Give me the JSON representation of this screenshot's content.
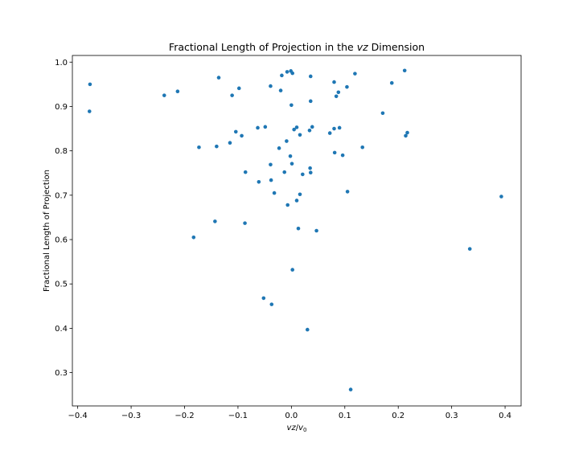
{
  "chart_data": {
    "type": "scatter",
    "title_prefix": "Fractional Length of Projection in the ",
    "title_italic": "vz",
    "title_suffix": " Dimension",
    "xlabel_italic_1": "vz",
    "xlabel_sep": "/",
    "xlabel_italic_2": "v",
    "xlabel_sub": "0",
    "ylabel": "Fractional Length of Projection",
    "xlim": [
      -0.41,
      0.43
    ],
    "ylim": [
      0.225,
      1.015
    ],
    "xticks": [
      -0.4,
      -0.3,
      -0.2,
      -0.1,
      0.0,
      0.1,
      0.2,
      0.3,
      0.4
    ],
    "xtick_labels": [
      "−0.4",
      "−0.3",
      "−0.2",
      "−0.1",
      "0.0",
      "0.1",
      "0.2",
      "0.3",
      "0.4"
    ],
    "yticks": [
      0.3,
      0.4,
      0.5,
      0.6,
      0.7,
      0.8,
      0.9,
      1.0
    ],
    "ytick_labels": [
      "0.3",
      "0.4",
      "0.5",
      "0.6",
      "0.7",
      "0.8",
      "0.9",
      "1.0"
    ],
    "grid": false,
    "marker_color": "#1f77b4",
    "points": [
      [
        -0.377,
        0.95
      ],
      [
        -0.378,
        0.889
      ],
      [
        -0.238,
        0.925
      ],
      [
        -0.213,
        0.934
      ],
      [
        -0.136,
        0.965
      ],
      [
        -0.111,
        0.925
      ],
      [
        -0.098,
        0.941
      ],
      [
        -0.14,
        0.81
      ],
      [
        -0.173,
        0.808
      ],
      [
        -0.115,
        0.818
      ],
      [
        -0.104,
        0.843
      ],
      [
        -0.093,
        0.834
      ],
      [
        -0.063,
        0.852
      ],
      [
        -0.049,
        0.854
      ],
      [
        -0.039,
        0.946
      ],
      [
        -0.02,
        0.936
      ],
      [
        -0.018,
        0.97
      ],
      [
        -0.008,
        0.978
      ],
      [
        -0.001,
        0.98
      ],
      [
        0.002,
        0.975
      ],
      [
        0.036,
        0.968
      ],
      [
        0.0,
        0.903
      ],
      [
        0.036,
        0.912
      ],
      [
        0.08,
        0.955
      ],
      [
        0.084,
        0.923
      ],
      [
        0.088,
        0.932
      ],
      [
        0.104,
        0.944
      ],
      [
        0.119,
        0.974
      ],
      [
        0.188,
        0.953
      ],
      [
        0.212,
        0.981
      ],
      [
        0.171,
        0.885
      ],
      [
        0.217,
        0.841
      ],
      [
        0.214,
        0.834
      ],
      [
        0.005,
        0.848
      ],
      [
        0.01,
        0.853
      ],
      [
        0.016,
        0.836
      ],
      [
        0.034,
        0.846
      ],
      [
        0.039,
        0.854
      ],
      [
        0.072,
        0.84
      ],
      [
        0.08,
        0.85
      ],
      [
        0.09,
        0.852
      ],
      [
        -0.009,
        0.822
      ],
      [
        -0.023,
        0.806
      ],
      [
        0.081,
        0.796
      ],
      [
        0.096,
        0.79
      ],
      [
        0.133,
        0.808
      ],
      [
        -0.002,
        0.788
      ],
      [
        -0.086,
        0.752
      ],
      [
        -0.039,
        0.769
      ],
      [
        0.001,
        0.771
      ],
      [
        -0.013,
        0.752
      ],
      [
        0.021,
        0.747
      ],
      [
        0.036,
        0.751
      ],
      [
        0.035,
        0.761
      ],
      [
        -0.061,
        0.73
      ],
      [
        -0.038,
        0.734
      ],
      [
        -0.032,
        0.705
      ],
      [
        0.016,
        0.702
      ],
      [
        0.01,
        0.688
      ],
      [
        -0.007,
        0.678
      ],
      [
        0.105,
        0.708
      ],
      [
        0.393,
        0.697
      ],
      [
        -0.087,
        0.637
      ],
      [
        -0.143,
        0.641
      ],
      [
        -0.183,
        0.605
      ],
      [
        0.013,
        0.625
      ],
      [
        0.047,
        0.62
      ],
      [
        0.334,
        0.579
      ],
      [
        0.002,
        0.532
      ],
      [
        -0.052,
        0.468
      ],
      [
        -0.037,
        0.454
      ],
      [
        0.03,
        0.397
      ],
      [
        0.111,
        0.262
      ]
    ]
  }
}
